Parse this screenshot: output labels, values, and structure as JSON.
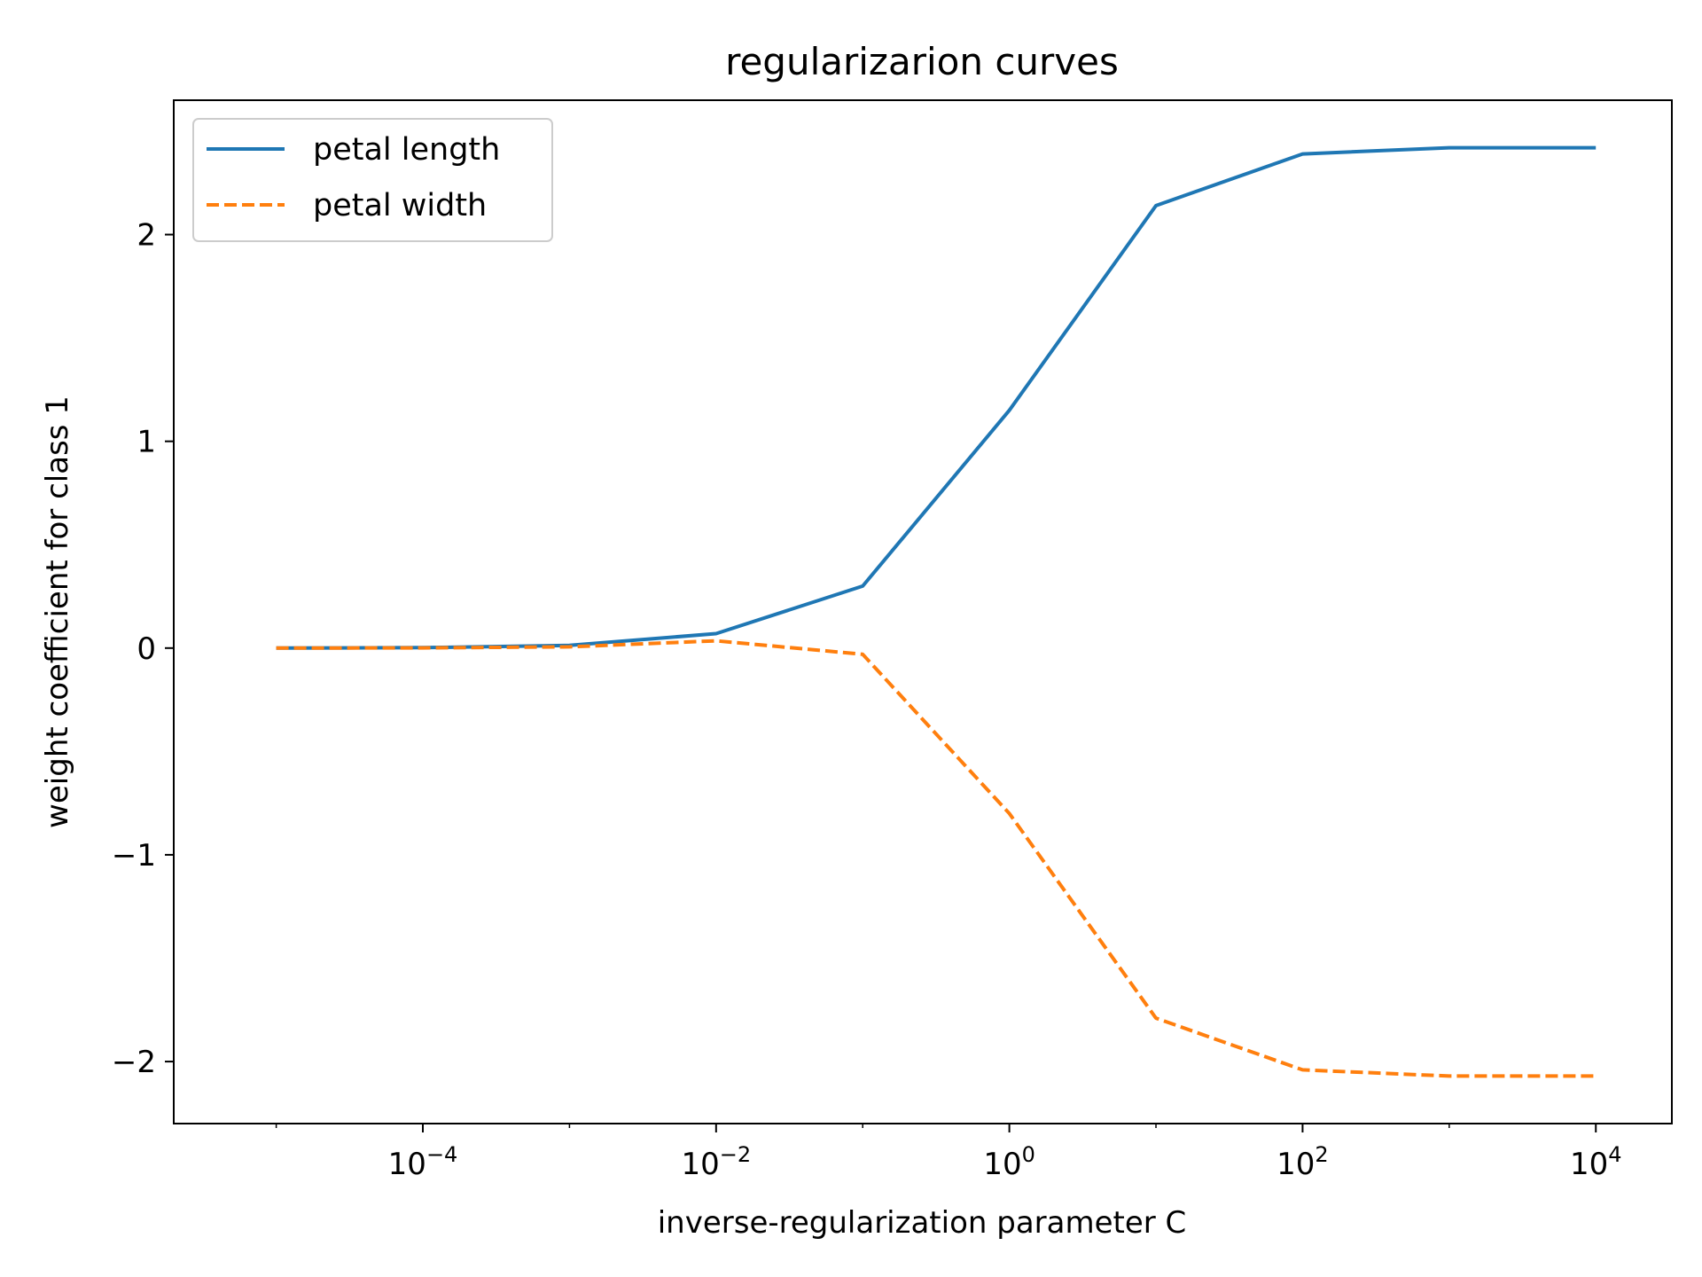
{
  "chart_data": {
    "type": "line",
    "title": "regularizarion curves",
    "xlabel": "inverse-regularization parameter C",
    "ylabel": "weight coefficient for class 1",
    "xscale": "log",
    "xlim": [
      2e-06,
      33000
    ],
    "ylim": [
      -2.3,
      2.65
    ],
    "x_ticks": [
      {
        "value": 0.0001,
        "base": "10",
        "exp": "−4"
      },
      {
        "value": 0.01,
        "base": "10",
        "exp": "−2"
      },
      {
        "value": 1,
        "base": "10",
        "exp": "0"
      },
      {
        "value": 100,
        "base": "10",
        "exp": "2"
      },
      {
        "value": 10000,
        "base": "10",
        "exp": "4"
      }
    ],
    "y_ticks": [
      {
        "value": -2,
        "label": "−2"
      },
      {
        "value": -1,
        "label": "−1"
      },
      {
        "value": 0,
        "label": "0"
      },
      {
        "value": 1,
        "label": "1"
      },
      {
        "value": 2,
        "label": "2"
      }
    ],
    "x": [
      1e-05,
      0.0001,
      0.001,
      0.01,
      0.1,
      1,
      10,
      100,
      1000,
      10000
    ],
    "series": [
      {
        "name": "petal length",
        "color": "#1f77b4",
        "style": "solid",
        "values": [
          0.0,
          0.002,
          0.013,
          0.07,
          0.3,
          1.15,
          2.14,
          2.39,
          2.42,
          2.42
        ]
      },
      {
        "name": "petal width",
        "color": "#ff7f0e",
        "style": "dashed",
        "values": [
          0.0,
          0.001,
          0.006,
          0.035,
          -0.03,
          -0.8,
          -1.79,
          -2.04,
          -2.07,
          -2.07
        ]
      }
    ],
    "grid": false,
    "legend": "upper-left"
  }
}
